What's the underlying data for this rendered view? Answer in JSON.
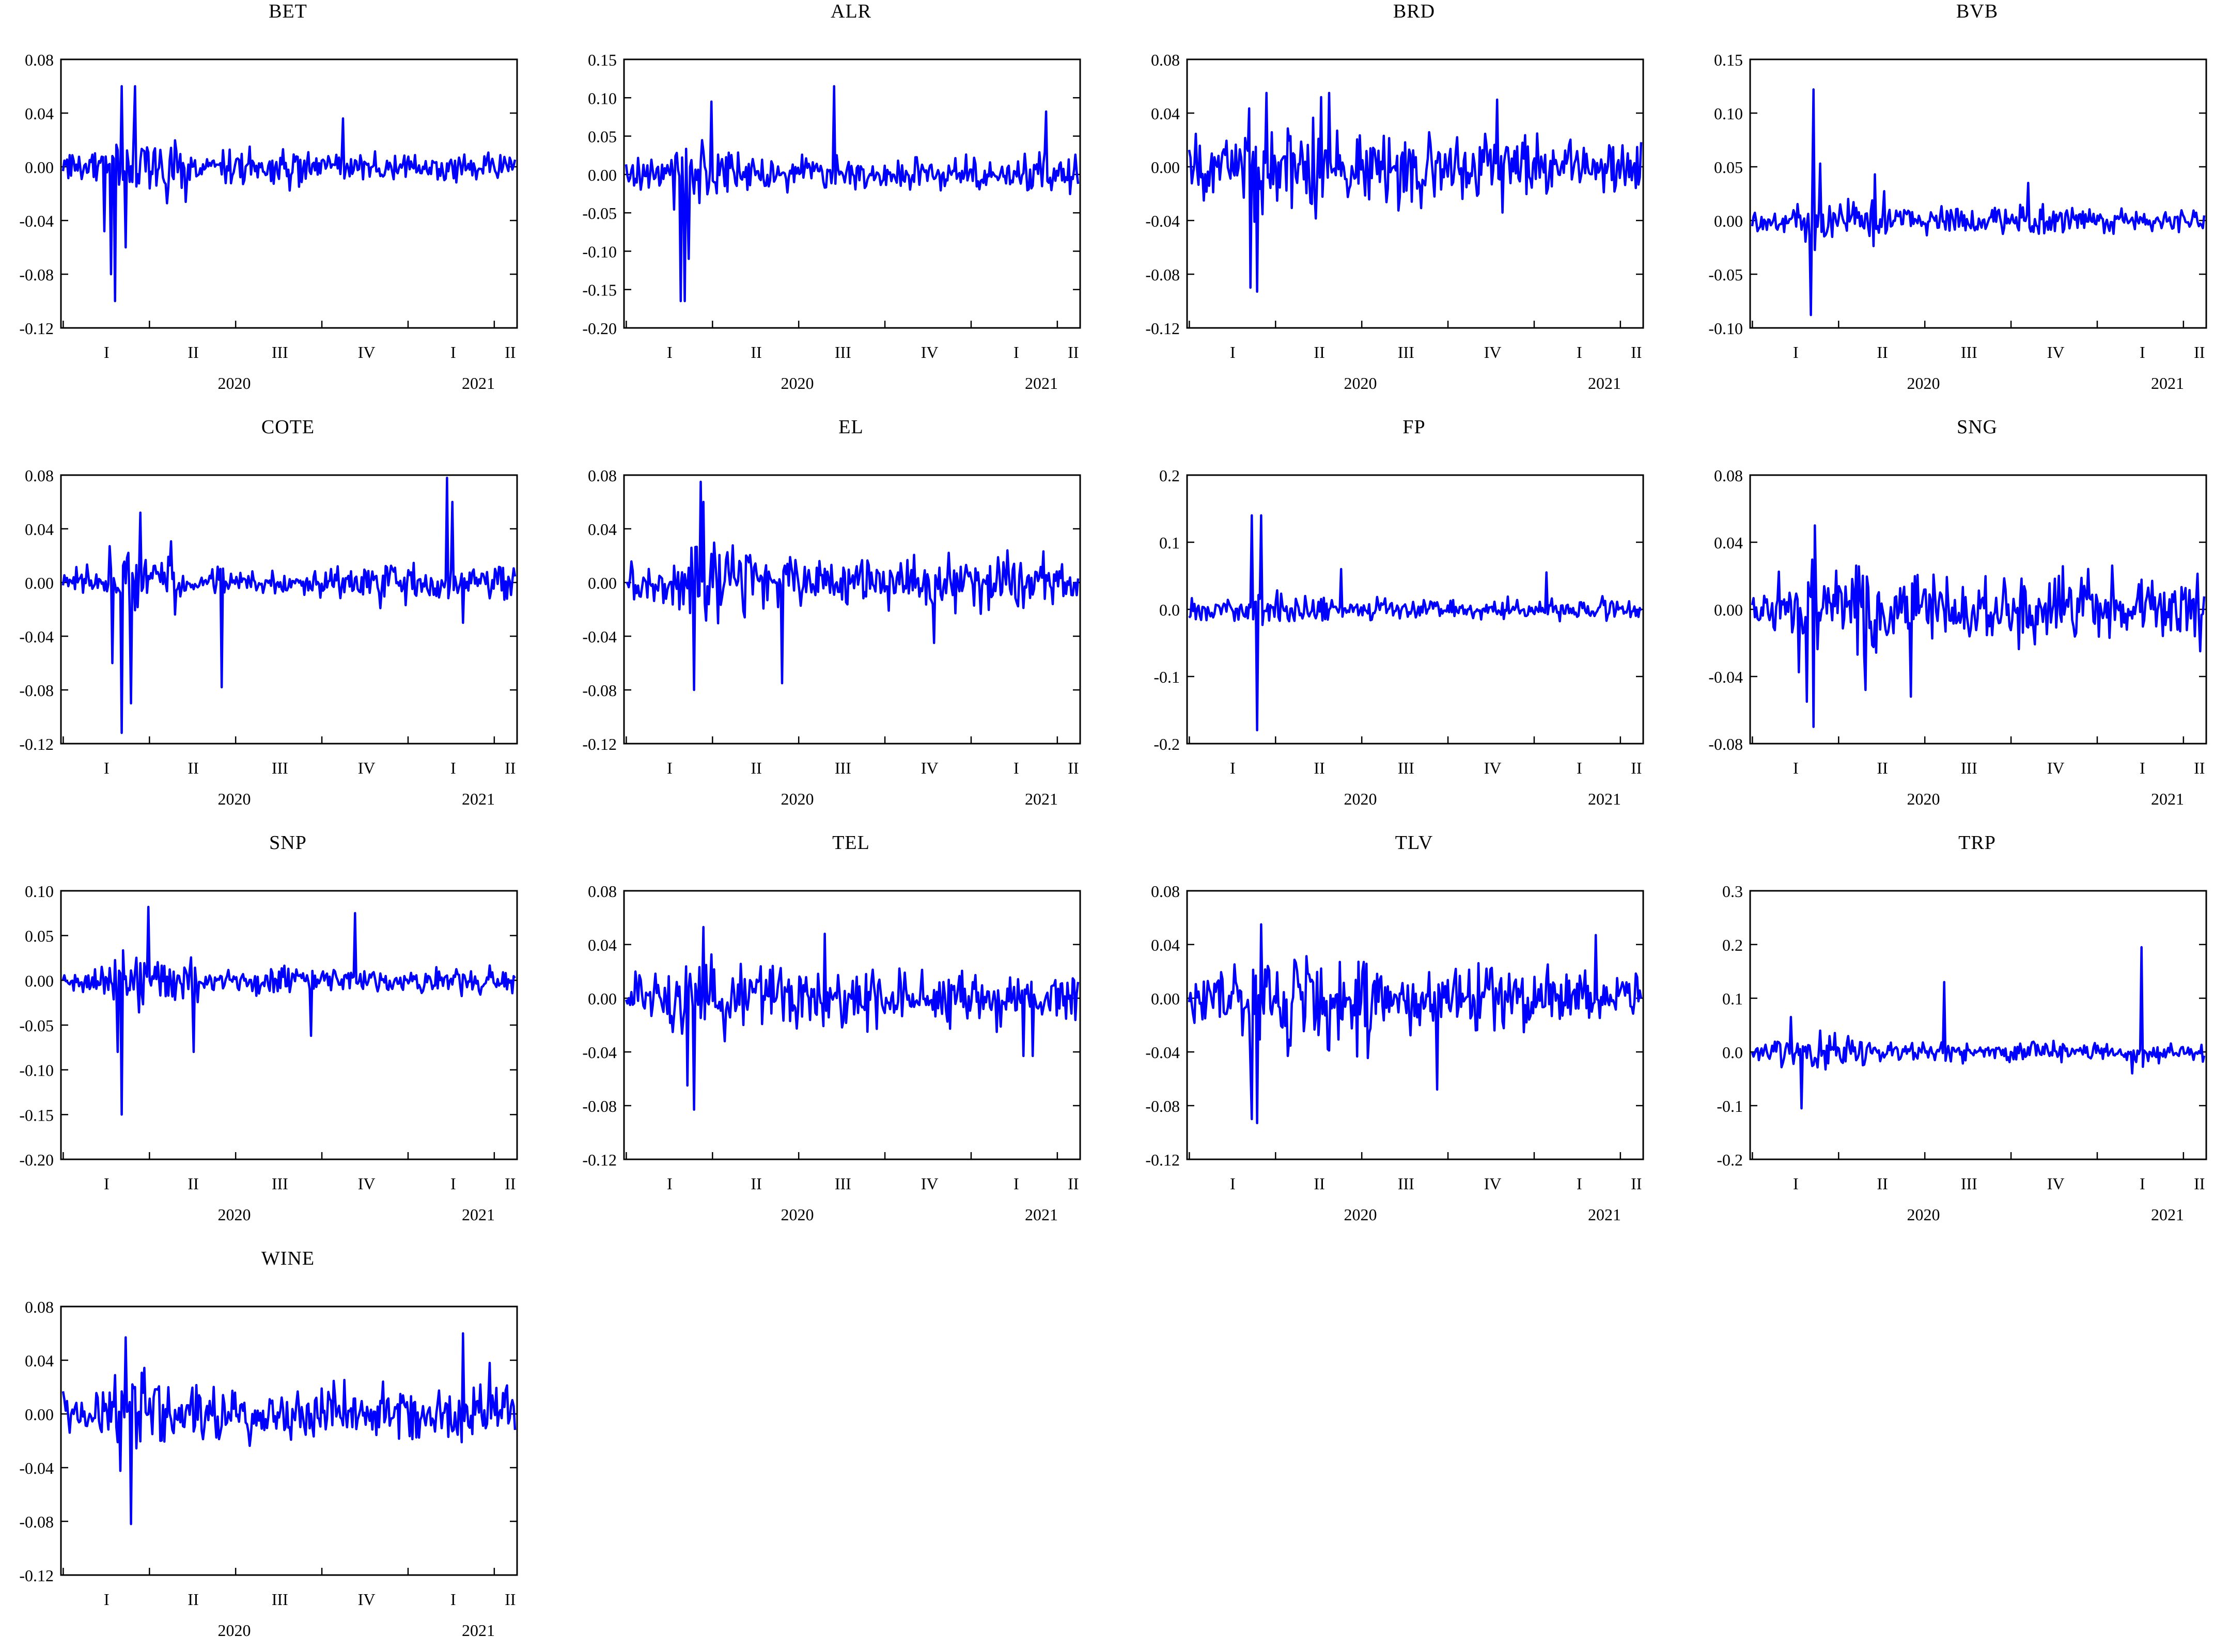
{
  "line_color": "#0000ff",
  "chart_data": [
    {
      "type": "line",
      "title": "BET",
      "ylim": [
        -0.12,
        0.08
      ],
      "yticks": [
        "0.08",
        "0.04",
        "0.00",
        "-0.04",
        "-0.08",
        "-0.12"
      ],
      "xticks_quarter": [
        "I",
        "II",
        "III",
        "IV",
        "I",
        "II"
      ],
      "xticks_year": [
        "2020",
        "2021"
      ],
      "grid": false,
      "seed": 1,
      "base_vol": 0.006,
      "regimes": [
        [
          0.12,
          0.3,
          2.6
        ],
        [
          0.3,
          0.55,
          1.4
        ]
      ],
      "spikes": [
        [
          0.09,
          -0.048
        ],
        [
          0.105,
          -0.08
        ],
        [
          0.115,
          -0.1
        ],
        [
          0.13,
          0.06
        ],
        [
          0.16,
          0.06
        ],
        [
          0.14,
          -0.06
        ],
        [
          0.62,
          0.036
        ]
      ]
    },
    {
      "type": "line",
      "title": "ALR",
      "ylim": [
        -0.2,
        0.15
      ],
      "yticks": [
        "0.15",
        "0.10",
        "0.05",
        "0.00",
        "-0.05",
        "-0.10",
        "-0.15",
        "-0.20"
      ],
      "xticks_quarter": [
        "I",
        "II",
        "III",
        "IV",
        "I",
        "II"
      ],
      "xticks_year": [
        "2020",
        "2021"
      ],
      "grid": false,
      "seed": 2,
      "base_vol": 0.013,
      "regimes": [
        [
          0.1,
          0.25,
          2.0
        ],
        [
          0.88,
          1.0,
          1.3
        ]
      ],
      "spikes": [
        [
          0.12,
          -0.165
        ],
        [
          0.13,
          -0.165
        ],
        [
          0.14,
          -0.11
        ],
        [
          0.19,
          0.095
        ],
        [
          0.46,
          0.115
        ],
        [
          0.93,
          0.082
        ]
      ]
    },
    {
      "type": "line",
      "title": "BRD",
      "ylim": [
        -0.12,
        0.08
      ],
      "yticks": [
        "0.08",
        "0.04",
        "0.00",
        "-0.04",
        "-0.08",
        "-0.12"
      ],
      "xticks_quarter": [
        "I",
        "II",
        "III",
        "IV",
        "I",
        "II"
      ],
      "xticks_year": [
        "2020",
        "2021"
      ],
      "grid": false,
      "seed": 3,
      "base_vol": 0.012,
      "regimes": [
        [
          0.12,
          0.3,
          2.3
        ],
        [
          0.3,
          0.8,
          1.3
        ]
      ],
      "spikes": [
        [
          0.135,
          -0.09
        ],
        [
          0.15,
          -0.093
        ],
        [
          0.17,
          0.055
        ],
        [
          0.31,
          0.055
        ],
        [
          0.68,
          0.05
        ]
      ]
    },
    {
      "type": "line",
      "title": "BVB",
      "ylim": [
        -0.1,
        0.15
      ],
      "yticks": [
        "0.15",
        "0.10",
        "0.05",
        "0.00",
        "-0.05",
        "-0.10"
      ],
      "xticks_quarter": [
        "I",
        "II",
        "III",
        "IV",
        "I",
        "II"
      ],
      "xticks_year": [
        "2020",
        "2021"
      ],
      "grid": false,
      "seed": 4,
      "base_vol": 0.007,
      "regimes": [
        [
          0.1,
          0.3,
          1.8
        ],
        [
          0.3,
          0.75,
          1.2
        ]
      ],
      "spikes": [
        [
          0.13,
          -0.088
        ],
        [
          0.135,
          0.122
        ],
        [
          0.15,
          0.053
        ],
        [
          0.27,
          0.043
        ],
        [
          0.61,
          0.035
        ]
      ]
    },
    {
      "type": "line",
      "title": "COTE",
      "ylim": [
        -0.12,
        0.08
      ],
      "yticks": [
        "0.08",
        "0.04",
        "0.00",
        "-0.04",
        "-0.08",
        "-0.12"
      ],
      "xticks_quarter": [
        "I",
        "II",
        "III",
        "IV",
        "I",
        "II"
      ],
      "xticks_year": [
        "2020",
        "2021"
      ],
      "grid": false,
      "seed": 5,
      "base_vol": 0.006,
      "regimes": [
        [
          0.1,
          0.25,
          2.5
        ],
        [
          0.6,
          1.0,
          1.6
        ]
      ],
      "spikes": [
        [
          0.11,
          -0.06
        ],
        [
          0.13,
          -0.112
        ],
        [
          0.15,
          -0.09
        ],
        [
          0.17,
          0.052
        ],
        [
          0.35,
          -0.078
        ],
        [
          0.85,
          0.078
        ],
        [
          0.86,
          0.06
        ],
        [
          0.885,
          -0.03
        ]
      ]
    },
    {
      "type": "line",
      "title": "EL",
      "ylim": [
        -0.12,
        0.08
      ],
      "yticks": [
        "0.08",
        "0.04",
        "0.00",
        "-0.04",
        "-0.08",
        "-0.12"
      ],
      "xticks_quarter": [
        "I",
        "II",
        "III",
        "IV",
        "I",
        "II"
      ],
      "xticks_year": [
        "2020",
        "2021"
      ],
      "grid": false,
      "seed": 6,
      "base_vol": 0.01,
      "regimes": [
        [
          0.1,
          0.28,
          2.0
        ],
        [
          0.28,
          1.0,
          1.2
        ]
      ],
      "spikes": [
        [
          0.15,
          -0.08
        ],
        [
          0.165,
          0.075
        ],
        [
          0.17,
          0.06
        ],
        [
          0.345,
          -0.075
        ],
        [
          0.68,
          -0.045
        ]
      ]
    },
    {
      "type": "line",
      "title": "FP",
      "ylim": [
        -0.2,
        0.2
      ],
      "yticks": [
        "0.2",
        "0.1",
        "0.0",
        "-0.1",
        "-0.2"
      ],
      "xticks_quarter": [
        "I",
        "II",
        "III",
        "IV",
        "I",
        "II"
      ],
      "xticks_year": [
        "2020",
        "2021"
      ],
      "grid": false,
      "seed": 7,
      "base_vol": 0.009,
      "regimes": [
        [
          0.12,
          0.3,
          1.8
        ]
      ],
      "spikes": [
        [
          0.14,
          0.14
        ],
        [
          0.15,
          -0.18
        ],
        [
          0.16,
          0.14
        ],
        [
          0.335,
          0.06
        ],
        [
          0.79,
          0.055
        ]
      ]
    },
    {
      "type": "line",
      "title": "SNG",
      "ylim": [
        -0.08,
        0.08
      ],
      "yticks": [
        "0.08",
        "0.04",
        "0.00",
        "-0.04",
        "-0.08"
      ],
      "xticks_quarter": [
        "I",
        "II",
        "III",
        "IV",
        "I",
        "II"
      ],
      "xticks_year": [
        "2020",
        "2021"
      ],
      "grid": false,
      "seed": 8,
      "base_vol": 0.01,
      "regimes": [
        [
          0.08,
          0.3,
          1.8
        ],
        [
          0.3,
          1.0,
          1.2
        ]
      ],
      "spikes": [
        [
          0.12,
          -0.055
        ],
        [
          0.135,
          -0.07
        ],
        [
          0.14,
          0.05
        ],
        [
          0.25,
          -0.048
        ],
        [
          0.35,
          -0.052
        ]
      ]
    },
    {
      "type": "line",
      "title": "SNP",
      "ylim": [
        -0.2,
        0.1
      ],
      "yticks": [
        "0.10",
        "0.05",
        "0.00",
        "-0.05",
        "-0.10",
        "-0.15",
        "-0.20"
      ],
      "xticks_quarter": [
        "I",
        "II",
        "III",
        "IV",
        "I",
        "II"
      ],
      "xticks_year": [
        "2020",
        "2021"
      ],
      "grid": false,
      "seed": 9,
      "base_vol": 0.009,
      "regimes": [
        [
          0.1,
          0.3,
          2.0
        ]
      ],
      "spikes": [
        [
          0.13,
          -0.15
        ],
        [
          0.12,
          -0.08
        ],
        [
          0.19,
          0.082
        ],
        [
          0.29,
          -0.08
        ],
        [
          0.55,
          -0.062
        ],
        [
          0.645,
          0.075
        ]
      ]
    },
    {
      "type": "line",
      "title": "TEL",
      "ylim": [
        -0.12,
        0.08
      ],
      "yticks": [
        "0.08",
        "0.04",
        "0.00",
        "-0.04",
        "-0.08",
        "-0.12"
      ],
      "xticks_quarter": [
        "I",
        "II",
        "III",
        "IV",
        "I",
        "II"
      ],
      "xticks_year": [
        "2020",
        "2021"
      ],
      "grid": false,
      "seed": 10,
      "base_vol": 0.011,
      "regimes": [
        [
          0.1,
          0.3,
          1.7
        ],
        [
          0.3,
          1.0,
          1.2
        ]
      ],
      "spikes": [
        [
          0.135,
          -0.065
        ],
        [
          0.15,
          -0.083
        ],
        [
          0.17,
          0.053
        ],
        [
          0.44,
          0.048
        ],
        [
          0.88,
          -0.043
        ],
        [
          0.9,
          -0.043
        ]
      ]
    },
    {
      "type": "line",
      "title": "TLV",
      "ylim": [
        -0.12,
        0.08
      ],
      "yticks": [
        "0.08",
        "0.04",
        "0.00",
        "-0.04",
        "-0.08",
        "-0.12"
      ],
      "xticks_quarter": [
        "I",
        "II",
        "III",
        "IV",
        "I",
        "II"
      ],
      "xticks_year": [
        "2020",
        "2021"
      ],
      "grid": false,
      "seed": 11,
      "base_vol": 0.011,
      "regimes": [
        [
          0.1,
          0.4,
          2.2
        ],
        [
          0.4,
          0.8,
          1.3
        ]
      ],
      "spikes": [
        [
          0.14,
          -0.09
        ],
        [
          0.15,
          -0.093
        ],
        [
          0.16,
          0.055
        ],
        [
          0.55,
          -0.068
        ],
        [
          0.9,
          0.047
        ]
      ]
    },
    {
      "type": "line",
      "title": "TRP",
      "ylim": [
        -0.2,
        0.3
      ],
      "yticks": [
        "0.3",
        "0.2",
        "0.1",
        "0.0",
        "-0.1",
        "-0.2"
      ],
      "xticks_quarter": [
        "I",
        "II",
        "III",
        "IV",
        "I",
        "II"
      ],
      "xticks_year": [
        "2020",
        "2021"
      ],
      "grid": false,
      "seed": 12,
      "base_vol": 0.011,
      "regimes": [
        [
          0.05,
          0.25,
          1.7
        ]
      ],
      "spikes": [
        [
          0.085,
          0.065
        ],
        [
          0.11,
          -0.105
        ],
        [
          0.425,
          0.13
        ],
        [
          0.86,
          0.195
        ],
        [
          0.84,
          -0.04
        ]
      ]
    },
    {
      "type": "line",
      "title": "WINE",
      "ylim": [
        -0.12,
        0.08
      ],
      "yticks": [
        "0.08",
        "0.04",
        "0.00",
        "-0.04",
        "-0.08",
        "-0.12"
      ],
      "xticks_quarter": [
        "I",
        "II",
        "III",
        "IV",
        "I",
        "II"
      ],
      "xticks_year": [
        "2020",
        "2021"
      ],
      "grid": false,
      "seed": 13,
      "base_vol": 0.01,
      "regimes": [
        [
          0.08,
          0.25,
          2.0
        ],
        [
          0.25,
          1.0,
          1.2
        ]
      ],
      "spikes": [
        [
          0.14,
          -0.065
        ],
        [
          0.15,
          -0.082
        ],
        [
          0.14,
          0.057
        ],
        [
          0.885,
          0.06
        ],
        [
          0.945,
          0.038
        ]
      ]
    }
  ]
}
